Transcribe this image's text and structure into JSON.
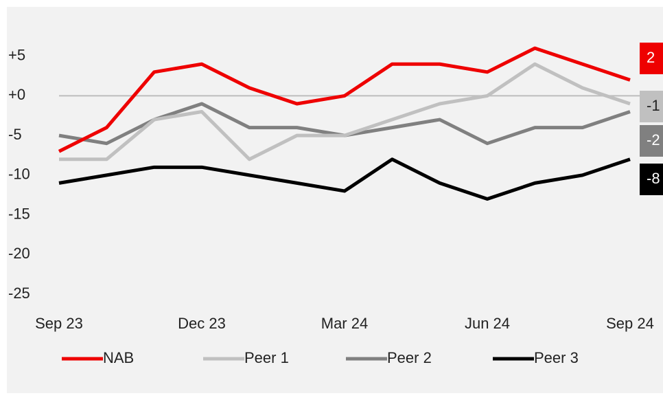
{
  "chart_data": {
    "type": "line",
    "categories": [
      "Sep 23",
      null,
      null,
      "Dec 23",
      null,
      null,
      "Mar 24",
      null,
      null,
      "Jun 24",
      null,
      null,
      "Sep 24"
    ],
    "series": [
      {
        "name": "NAB",
        "color": "#ee0000",
        "values": [
          -7,
          -4,
          3,
          4,
          1,
          -1,
          0,
          4,
          4,
          3,
          6,
          4,
          2
        ]
      },
      {
        "name": "Peer 1",
        "color": "#c0c0c0",
        "values": [
          -8,
          -8,
          -3,
          -2,
          -8,
          -5,
          -5,
          -3,
          -1,
          0,
          4,
          1,
          -1
        ]
      },
      {
        "name": "Peer 2",
        "color": "#808080",
        "values": [
          -5,
          -6,
          -3,
          -1,
          -4,
          -4,
          -5,
          -4,
          -3,
          -6,
          -4,
          -4,
          -2
        ]
      },
      {
        "name": "Peer 3",
        "color": "#000000",
        "values": [
          -11,
          -10,
          -9,
          -9,
          -10,
          -11,
          -12,
          -8,
          -11,
          -13,
          -11,
          -10,
          -8
        ]
      }
    ],
    "ylim": [
      -25,
      10
    ],
    "yticks": [
      {
        "value": 5,
        "label": "+5"
      },
      {
        "value": 0,
        "label": "+0"
      },
      -5,
      -10,
      -15,
      -20,
      -25
    ],
    "zero_line": true,
    "end_labels": true,
    "legend": "bottom"
  }
}
